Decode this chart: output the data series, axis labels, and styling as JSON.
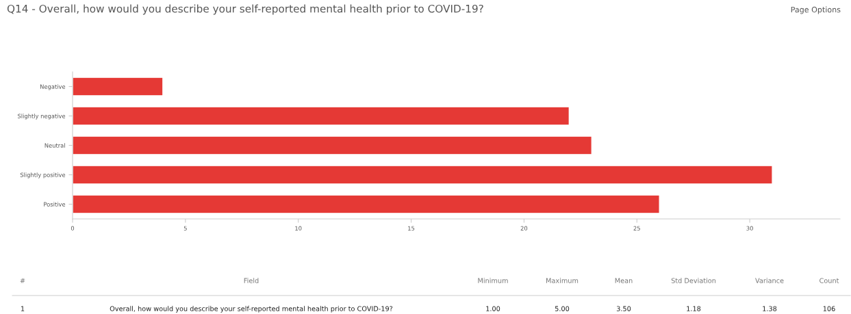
{
  "chart_data": {
    "type": "bar",
    "orientation": "horizontal",
    "title": "Q14 - Overall, how would you describe your self-reported mental health prior to COVID-19?",
    "categories": [
      "Negative",
      "Slightly negative",
      "Neutral",
      "Slightly positive",
      "Positive"
    ],
    "values": [
      4,
      22,
      23,
      31,
      26
    ],
    "color": "#e53935",
    "xlim": [
      0,
      34
    ],
    "xticks": [
      0,
      5,
      10,
      15,
      20,
      25,
      30
    ],
    "grid": false,
    "legend": false,
    "annotations": [
      "Page Options",
      "#",
      "Field",
      "Minimum",
      "Maximum",
      "Mean",
      "Std Deviation",
      "Variance",
      "Count",
      "1",
      "Overall, how would you describe your self-reported mental health prior to COVID-19?",
      "1.00",
      "5.00",
      "3.50",
      "1.18",
      "1.38",
      "106"
    ]
  }
}
